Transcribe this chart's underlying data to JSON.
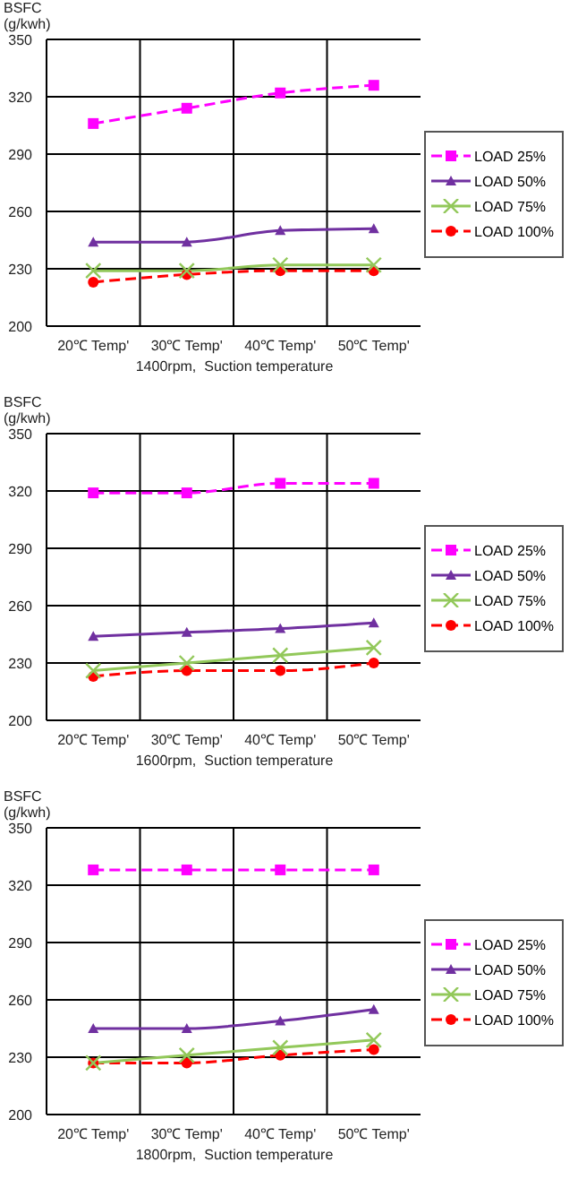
{
  "chart_data": [
    {
      "type": "line",
      "ylabel": "BSFC\n(g/kwh)",
      "xlabel": "1400rpm,  Suction temperature",
      "categories": [
        "20℃ Temp'",
        "30℃ Temp'",
        "40℃ Temp'",
        "50℃ Temp'"
      ],
      "ylim": [
        200,
        350
      ],
      "yticks": [
        200,
        230,
        260,
        290,
        320,
        350
      ],
      "grid": true,
      "legend": "right",
      "series": [
        {
          "name": "LOAD 25%",
          "color": "#ff00ff",
          "marker": "square",
          "line_style": "dashed",
          "values": [
            306,
            314,
            322,
            326
          ]
        },
        {
          "name": "LOAD 50%",
          "color": "#7030a0",
          "marker": "triangle",
          "line_style": "solid",
          "values": [
            244,
            244,
            250,
            251
          ]
        },
        {
          "name": "LOAD 75%",
          "color": "#92c85a",
          "marker": "cross",
          "line_style": "solid",
          "values": [
            229,
            229,
            232,
            232
          ]
        },
        {
          "name": "LOAD 100%",
          "color": "#ff0000",
          "marker": "circle",
          "line_style": "dashed",
          "values": [
            223,
            227,
            229,
            229
          ]
        }
      ]
    },
    {
      "type": "line",
      "ylabel": "BSFC\n(g/kwh)",
      "xlabel": "1600rpm,  Suction temperature",
      "categories": [
        "20℃ Temp'",
        "30℃ Temp'",
        "40℃ Temp'",
        "50℃ Temp'"
      ],
      "ylim": [
        200,
        350
      ],
      "yticks": [
        200,
        230,
        260,
        290,
        320,
        350
      ],
      "grid": true,
      "legend": "right",
      "series": [
        {
          "name": "LOAD 25%",
          "color": "#ff00ff",
          "marker": "square",
          "line_style": "dashed",
          "values": [
            319,
            319,
            324,
            324
          ]
        },
        {
          "name": "LOAD 50%",
          "color": "#7030a0",
          "marker": "triangle",
          "line_style": "solid",
          "values": [
            244,
            246,
            248,
            251
          ]
        },
        {
          "name": "LOAD 75%",
          "color": "#92c85a",
          "marker": "cross",
          "line_style": "solid",
          "values": [
            226,
            230,
            234,
            238
          ]
        },
        {
          "name": "LOAD 100%",
          "color": "#ff0000",
          "marker": "circle",
          "line_style": "dashed",
          "values": [
            223,
            226,
            226,
            230
          ]
        }
      ]
    },
    {
      "type": "line",
      "ylabel": "BSFC\n(g/kwh)",
      "xlabel": "1800rpm,  Suction temperature",
      "categories": [
        "20℃ Temp'",
        "30℃ Temp'",
        "40℃ Temp'",
        "50℃ Temp'"
      ],
      "ylim": [
        200,
        350
      ],
      "yticks": [
        200,
        230,
        260,
        290,
        320,
        350
      ],
      "grid": true,
      "legend": "right",
      "series": [
        {
          "name": "LOAD 25%",
          "color": "#ff00ff",
          "marker": "square",
          "line_style": "dashed",
          "values": [
            328,
            328,
            328,
            328
          ]
        },
        {
          "name": "LOAD 50%",
          "color": "#7030a0",
          "marker": "triangle",
          "line_style": "solid",
          "values": [
            245,
            245,
            249,
            255
          ]
        },
        {
          "name": "LOAD 75%",
          "color": "#92c85a",
          "marker": "cross",
          "line_style": "solid",
          "values": [
            227,
            231,
            235,
            239
          ]
        },
        {
          "name": "LOAD 100%",
          "color": "#ff0000",
          "marker": "circle",
          "line_style": "dashed",
          "values": [
            227,
            227,
            231,
            234
          ]
        }
      ]
    }
  ]
}
